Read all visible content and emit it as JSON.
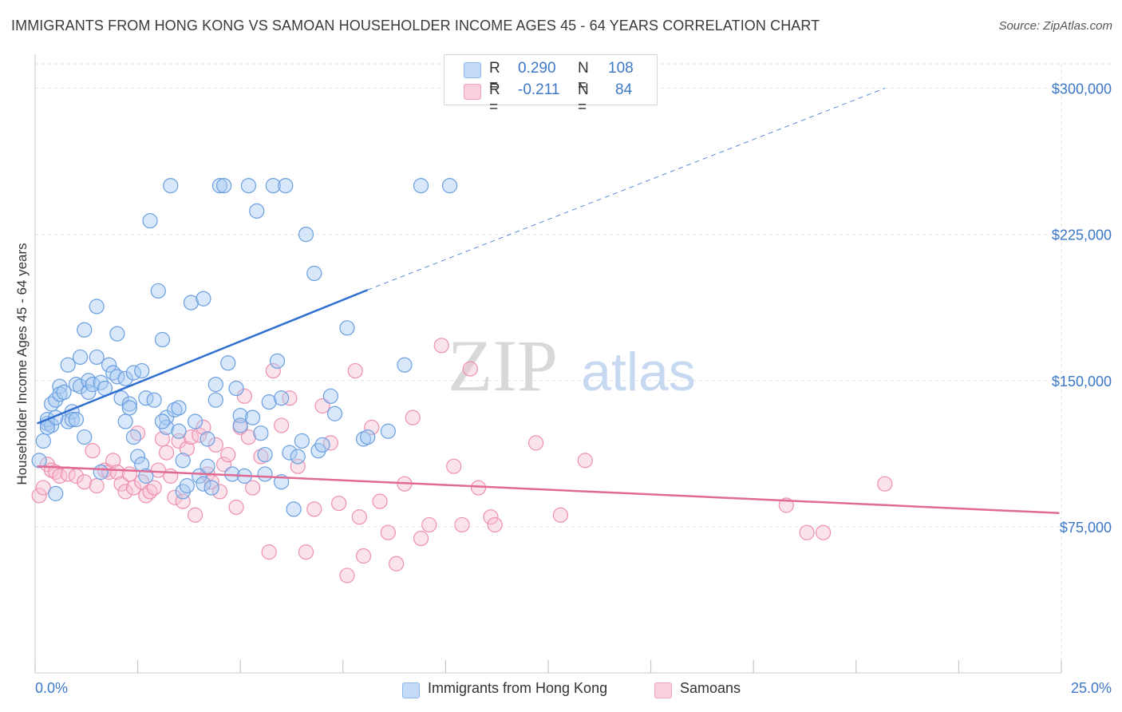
{
  "title": "IMMIGRANTS FROM HONG KONG VS SAMOAN HOUSEHOLDER INCOME AGES 45 - 64 YEARS CORRELATION CHART",
  "source": "Source: ZipAtlas.com",
  "watermark": {
    "zip": "ZIP",
    "atlas": "atlas"
  },
  "legend": {
    "r_label": "R =",
    "n_label": "N =",
    "rows": [
      {
        "r": "0.290",
        "n": "108",
        "color": "#a9c9f2"
      },
      {
        "r": "-0.211",
        "n": "84",
        "color": "#f7b6cb"
      }
    ]
  },
  "bottom_legend": [
    "Immigrants from Hong Kong",
    "Samoans"
  ],
  "colors": {
    "blue_fill": "#a9c9f2",
    "blue_stroke": "#6a9fe0",
    "blue_line": "#2f6fd0",
    "pink_fill": "#f7c1d2",
    "pink_stroke": "#ee8fae",
    "pink_line": "#e06a93",
    "axis_text": "#3c78c8",
    "grid": "#e3e3e3"
  },
  "chart_data": {
    "type": "scatter",
    "title": "IMMIGRANTS FROM HONG KONG VS SAMOAN HOUSEHOLDER INCOME AGES 45 - 64 YEARS CORRELATION CHART",
    "xlabel": "",
    "ylabel": "Householder Income Ages 45 - 64 years",
    "xlim": [
      0,
      25
    ],
    "ylim": [
      0,
      312500
    ],
    "x_tick_labels": [
      "0.0%",
      "25.0%"
    ],
    "y_ticks": [
      75000,
      150000,
      225000,
      300000
    ],
    "y_tick_labels": [
      "$75,000",
      "$150,000",
      "$225,000",
      "$300,000"
    ],
    "grid": true,
    "legend_position": "top-center",
    "series": [
      {
        "name": "Immigrants from Hong Kong",
        "r": 0.29,
        "n": 108,
        "trend": {
          "x0": 0.05,
          "y0": 128000,
          "x1": 8.1,
          "y1": 196500,
          "dashed_to_x": 20.7,
          "dashed_to_y": 300000
        },
        "points": [
          [
            0.1,
            109000
          ],
          [
            0.2,
            119000
          ],
          [
            0.3,
            128000
          ],
          [
            0.3,
            130000
          ],
          [
            0.4,
            138000
          ],
          [
            0.5,
            140000
          ],
          [
            0.4,
            127000
          ],
          [
            0.6,
            147000
          ],
          [
            0.6,
            143000
          ],
          [
            0.5,
            92000
          ],
          [
            0.7,
            144000
          ],
          [
            0.8,
            129000
          ],
          [
            0.9,
            134000
          ],
          [
            0.9,
            130000
          ],
          [
            1.0,
            130000
          ],
          [
            1.0,
            148000
          ],
          [
            1.1,
            147000
          ],
          [
            1.1,
            162000
          ],
          [
            1.2,
            176000
          ],
          [
            1.3,
            150000
          ],
          [
            1.3,
            144000
          ],
          [
            1.4,
            148000
          ],
          [
            1.5,
            188000
          ],
          [
            1.5,
            162000
          ],
          [
            1.6,
            149000
          ],
          [
            1.7,
            146000
          ],
          [
            1.8,
            158000
          ],
          [
            1.9,
            154000
          ],
          [
            2.0,
            174000
          ],
          [
            2.0,
            152000
          ],
          [
            2.1,
            141000
          ],
          [
            2.2,
            151000
          ],
          [
            2.3,
            138000
          ],
          [
            2.3,
            136000
          ],
          [
            2.4,
            154000
          ],
          [
            2.4,
            121000
          ],
          [
            2.5,
            111000
          ],
          [
            2.6,
            107000
          ],
          [
            2.6,
            155000
          ],
          [
            2.7,
            141000
          ],
          [
            2.8,
            232000
          ],
          [
            2.9,
            140000
          ],
          [
            3.0,
            196000
          ],
          [
            3.1,
            171000
          ],
          [
            3.2,
            131000
          ],
          [
            3.2,
            126000
          ],
          [
            3.3,
            250000
          ],
          [
            3.4,
            135000
          ],
          [
            3.5,
            136000
          ],
          [
            3.5,
            124000
          ],
          [
            3.6,
            93000
          ],
          [
            3.7,
            96000
          ],
          [
            3.8,
            190000
          ],
          [
            3.9,
            129000
          ],
          [
            4.0,
            101000
          ],
          [
            4.1,
            97000
          ],
          [
            4.1,
            192000
          ],
          [
            4.2,
            120000
          ],
          [
            4.2,
            106000
          ],
          [
            4.3,
            95000
          ],
          [
            4.4,
            148000
          ],
          [
            4.5,
            250000
          ],
          [
            4.6,
            250000
          ],
          [
            4.7,
            159000
          ],
          [
            4.8,
            102000
          ],
          [
            4.9,
            146000
          ],
          [
            5.0,
            132000
          ],
          [
            5.0,
            127000
          ],
          [
            5.2,
            250000
          ],
          [
            5.3,
            131000
          ],
          [
            5.4,
            237000
          ],
          [
            5.5,
            123000
          ],
          [
            5.6,
            112000
          ],
          [
            5.7,
            139000
          ],
          [
            5.8,
            250000
          ],
          [
            5.9,
            160000
          ],
          [
            6.0,
            98000
          ],
          [
            6.1,
            250000
          ],
          [
            6.2,
            113000
          ],
          [
            6.3,
            84000
          ],
          [
            6.4,
            111000
          ],
          [
            6.5,
            119000
          ],
          [
            6.6,
            225000
          ],
          [
            6.8,
            205000
          ],
          [
            6.9,
            114000
          ],
          [
            7.0,
            117000
          ],
          [
            7.2,
            142000
          ],
          [
            7.3,
            133000
          ],
          [
            7.6,
            177000
          ],
          [
            8.0,
            120000
          ],
          [
            8.1,
            121000
          ],
          [
            8.6,
            124000
          ],
          [
            9.0,
            158000
          ],
          [
            9.4,
            250000
          ],
          [
            10.1,
            250000
          ],
          [
            0.3,
            126000
          ],
          [
            0.5,
            131000
          ],
          [
            1.2,
            121000
          ],
          [
            1.6,
            103000
          ],
          [
            2.7,
            101000
          ],
          [
            3.6,
            109000
          ],
          [
            4.4,
            140000
          ],
          [
            5.1,
            101000
          ],
          [
            6.0,
            141000
          ],
          [
            3.1,
            129000
          ],
          [
            2.2,
            129000
          ],
          [
            0.8,
            158000
          ],
          [
            5.6,
            102000
          ]
        ]
      },
      {
        "name": "Samoans",
        "r": -0.211,
        "n": 84,
        "trend": {
          "x0": 0.05,
          "y0": 106000,
          "x1": 24.95,
          "y1": 82000
        },
        "points": [
          [
            0.1,
            91000
          ],
          [
            0.2,
            95000
          ],
          [
            0.3,
            107000
          ],
          [
            0.4,
            104000
          ],
          [
            0.5,
            103000
          ],
          [
            0.6,
            101000
          ],
          [
            0.8,
            102000
          ],
          [
            1.0,
            101000
          ],
          [
            1.2,
            98000
          ],
          [
            1.4,
            114000
          ],
          [
            1.5,
            96000
          ],
          [
            1.7,
            104000
          ],
          [
            1.8,
            103000
          ],
          [
            1.9,
            109000
          ],
          [
            2.0,
            103000
          ],
          [
            2.1,
            97000
          ],
          [
            2.2,
            93000
          ],
          [
            2.3,
            102000
          ],
          [
            2.4,
            95000
          ],
          [
            2.5,
            123000
          ],
          [
            2.6,
            98000
          ],
          [
            2.7,
            91000
          ],
          [
            2.8,
            93000
          ],
          [
            2.9,
            95000
          ],
          [
            3.0,
            104000
          ],
          [
            3.1,
            120000
          ],
          [
            3.2,
            113000
          ],
          [
            3.3,
            101000
          ],
          [
            3.4,
            90000
          ],
          [
            3.5,
            119000
          ],
          [
            3.6,
            88000
          ],
          [
            3.7,
            115000
          ],
          [
            3.8,
            121000
          ],
          [
            3.9,
            81000
          ],
          [
            4.0,
            122000
          ],
          [
            4.1,
            126000
          ],
          [
            4.2,
            102000
          ],
          [
            4.3,
            98000
          ],
          [
            4.4,
            117000
          ],
          [
            4.5,
            93000
          ],
          [
            4.6,
            107000
          ],
          [
            4.7,
            112000
          ],
          [
            4.9,
            85000
          ],
          [
            5.0,
            126000
          ],
          [
            5.1,
            142000
          ],
          [
            5.2,
            121000
          ],
          [
            5.3,
            95000
          ],
          [
            5.5,
            111000
          ],
          [
            5.7,
            62000
          ],
          [
            5.8,
            155000
          ],
          [
            6.0,
            127000
          ],
          [
            6.2,
            141000
          ],
          [
            6.4,
            106000
          ],
          [
            6.6,
            62000
          ],
          [
            6.8,
            84000
          ],
          [
            7.0,
            137000
          ],
          [
            7.2,
            118000
          ],
          [
            7.4,
            87000
          ],
          [
            7.6,
            50000
          ],
          [
            7.8,
            155000
          ],
          [
            7.9,
            80000
          ],
          [
            8.0,
            60000
          ],
          [
            8.2,
            126000
          ],
          [
            8.4,
            88000
          ],
          [
            8.6,
            72000
          ],
          [
            8.8,
            56000
          ],
          [
            9.0,
            97000
          ],
          [
            9.2,
            131000
          ],
          [
            9.4,
            69000
          ],
          [
            9.6,
            76000
          ],
          [
            9.9,
            168000
          ],
          [
            10.2,
            106000
          ],
          [
            10.4,
            76000
          ],
          [
            10.6,
            156000
          ],
          [
            10.8,
            95000
          ],
          [
            11.1,
            80000
          ],
          [
            11.2,
            76000
          ],
          [
            12.2,
            118000
          ],
          [
            12.8,
            81000
          ],
          [
            13.4,
            109000
          ],
          [
            18.3,
            86000
          ],
          [
            18.8,
            72000
          ],
          [
            19.2,
            72000
          ],
          [
            20.7,
            97000
          ]
        ]
      }
    ]
  }
}
